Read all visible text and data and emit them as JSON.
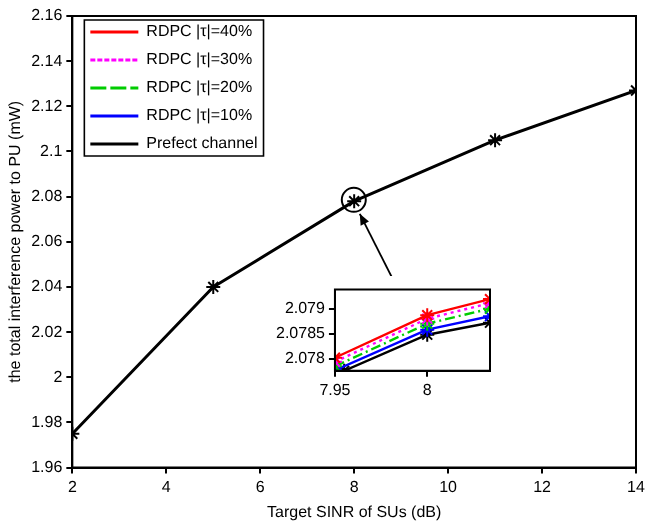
{
  "chart_data": [
    {
      "type": "line",
      "xlabel": "Target SINR of SUs (dB)",
      "ylabel": "the total interference power to PU (mW)",
      "x": [
        2,
        5,
        8,
        11,
        14
      ],
      "xlim": [
        2,
        14
      ],
      "xticks": [
        2,
        4,
        6,
        8,
        10,
        12,
        14
      ],
      "ylim": [
        1.96,
        2.16
      ],
      "yticks": [
        1.96,
        1.98,
        2,
        2.02,
        2.04,
        2.06,
        2.08,
        2.1,
        2.12,
        2.14,
        2.16
      ],
      "grid": false,
      "legend": "top left",
      "marker": "cross",
      "series": [
        {
          "name": "RDPC |τ|=40%",
          "color": "#ff0000",
          "line_style": "solid",
          "values": [
            null,
            null,
            null,
            null,
            null
          ]
        },
        {
          "name": "RDPC |τ|=30%",
          "color": "#ff00ff",
          "line_style": "dotted",
          "values": [
            null,
            null,
            null,
            null,
            null
          ]
        },
        {
          "name": "RDPC |τ|=20%",
          "color": "#00cc00",
          "line_style": "dashed",
          "values": [
            null,
            null,
            null,
            null,
            null
          ]
        },
        {
          "name": "RDPC |τ|=10%",
          "color": "#0000ff",
          "line_style": "solid",
          "values": [
            null,
            null,
            null,
            null,
            null
          ]
        },
        {
          "name": "Prefect channel",
          "color": "#000000",
          "line_style": "solid",
          "values": [
            1.975,
            2.04,
            2.078,
            2.105,
            2.127
          ]
        }
      ]
    },
    {
      "type": "line",
      "xlim": [
        7.95,
        8.034
      ],
      "xticks": [
        7.95,
        8
      ],
      "ylim": [
        2.07776,
        2.07938
      ],
      "yticks": [
        2.078,
        2.0785,
        2.079
      ],
      "grid": false,
      "marker": "cross",
      "series": [
        {
          "color": "#ff0000",
          "line_style": "solid",
          "x": [
            7.95,
            8,
            8.034
          ],
          "values": [
            2.07802,
            2.07887,
            2.07919
          ]
        },
        {
          "color": "#ff00ff",
          "line_style": "dotted",
          "x": [
            7.95,
            8,
            8.034
          ],
          "values": [
            2.07794,
            2.0788,
            2.07911
          ]
        },
        {
          "color": "#00cc00",
          "line_style": "dashed",
          "x": [
            7.95,
            8,
            8.034
          ],
          "values": [
            2.07785,
            2.0787,
            2.079
          ]
        },
        {
          "color": "#0000ff",
          "line_style": "solid",
          "x": [
            7.95,
            8,
            8.034
          ],
          "values": [
            2.07777,
            2.07858,
            2.07885
          ]
        },
        {
          "color": "#000000",
          "line_style": "solid",
          "x": [
            7.955,
            8,
            8.034
          ],
          "values": [
            2.07776,
            2.07848,
            2.07872
          ]
        }
      ]
    }
  ]
}
